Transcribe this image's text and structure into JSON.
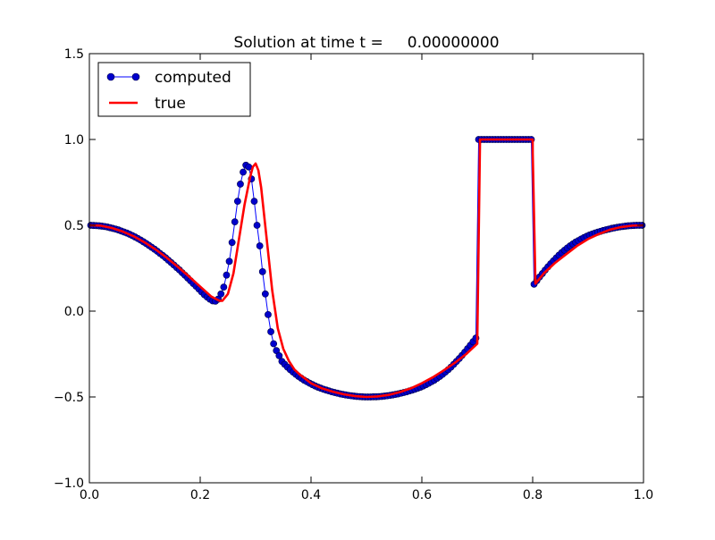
{
  "chart_data": {
    "type": "line",
    "title": "Solution at time t =     0.00000000",
    "xlabel": "",
    "ylabel": "",
    "xlim": [
      0.0,
      1.0
    ],
    "ylim": [
      -1.0,
      1.5
    ],
    "x_ticks": [
      0.0,
      0.2,
      0.4,
      0.6,
      0.8,
      1.0
    ],
    "x_tick_labels": [
      "0.0",
      "0.2",
      "0.4",
      "0.6",
      "0.8",
      "1.0"
    ],
    "y_ticks": [
      -1.0,
      -0.5,
      0.0,
      0.5,
      1.0,
      1.5
    ],
    "y_tick_labels": [
      "−1.0",
      "−0.5",
      "0.0",
      "0.5",
      "1.0",
      "1.5"
    ],
    "grid": false,
    "legend": {
      "placement": "top-left",
      "entries": [
        {
          "label": "computed",
          "style": "line-marker",
          "color": "#0000ff"
        },
        {
          "label": "true",
          "style": "line",
          "color": "#ff0000"
        }
      ]
    },
    "series": [
      {
        "name": "computed",
        "color": "#0000ff",
        "marker_fill": "#0000cc",
        "marker_stroke": "#000044",
        "style": "line-marker",
        "x": [
          0.0025,
          0.0075,
          0.0125,
          0.0175,
          0.0225,
          0.0275,
          0.0325,
          0.0375,
          0.0425,
          0.0475,
          0.0525,
          0.0575,
          0.0625,
          0.0675,
          0.0725,
          0.0775,
          0.0825,
          0.0875,
          0.0925,
          0.0975,
          0.1025,
          0.1075,
          0.1125,
          0.1175,
          0.1225,
          0.1275,
          0.1325,
          0.1375,
          0.1425,
          0.1475,
          0.1525,
          0.1575,
          0.1625,
          0.1675,
          0.1725,
          0.1775,
          0.1825,
          0.1875,
          0.1925,
          0.1975,
          0.2025,
          0.2075,
          0.2125,
          0.2175,
          0.2225,
          0.2275,
          0.2325,
          0.2375,
          0.2425,
          0.2475,
          0.2525,
          0.2575,
          0.2625,
          0.2675,
          0.2725,
          0.2775,
          0.2825,
          0.2875,
          0.2925,
          0.2975,
          0.3025,
          0.3075,
          0.3125,
          0.3175,
          0.3225,
          0.3275,
          0.3325,
          0.3375,
          0.3425,
          0.3475,
          0.3525,
          0.3575,
          0.3625,
          0.3675,
          0.3725,
          0.3775,
          0.3825,
          0.3875,
          0.3925,
          0.3975,
          0.4025,
          0.4075,
          0.4125,
          0.4175,
          0.4225,
          0.4275,
          0.4325,
          0.4375,
          0.4425,
          0.4475,
          0.4525,
          0.4575,
          0.4625,
          0.4675,
          0.4725,
          0.4775,
          0.4825,
          0.4875,
          0.4925,
          0.4975,
          0.5025,
          0.5075,
          0.5125,
          0.5175,
          0.5225,
          0.5275,
          0.5325,
          0.5375,
          0.5425,
          0.5475,
          0.5525,
          0.5575,
          0.5625,
          0.5675,
          0.5725,
          0.5775,
          0.5825,
          0.5875,
          0.5925,
          0.5975,
          0.6025,
          0.6075,
          0.6125,
          0.6175,
          0.6225,
          0.6275,
          0.6325,
          0.6375,
          0.6425,
          0.6475,
          0.6525,
          0.6575,
          0.6625,
          0.6675,
          0.6725,
          0.6775,
          0.6825,
          0.6875,
          0.6925,
          0.6975,
          0.7025,
          0.7075,
          0.7125,
          0.7175,
          0.7225,
          0.7275,
          0.7325,
          0.7375,
          0.7425,
          0.7475,
          0.7525,
          0.7575,
          0.7625,
          0.7675,
          0.7725,
          0.7775,
          0.7825,
          0.7875,
          0.7925,
          0.7975,
          0.8025,
          0.8075,
          0.8125,
          0.8175,
          0.8225,
          0.8275,
          0.8325,
          0.8375,
          0.8425,
          0.8475,
          0.8525,
          0.8575,
          0.8625,
          0.8675,
          0.8725,
          0.8775,
          0.8825,
          0.8875,
          0.8925,
          0.8975,
          0.9025,
          0.9075,
          0.9125,
          0.9175,
          0.9225,
          0.9275,
          0.9325,
          0.9375,
          0.9425,
          0.9475,
          0.9525,
          0.9575,
          0.9625,
          0.9675,
          0.9725,
          0.9775,
          0.9825,
          0.9875,
          0.9925,
          0.9975
        ],
        "y": [
          0.5,
          0.499,
          0.498,
          0.497,
          0.495,
          0.493,
          0.49,
          0.486,
          0.482,
          0.478,
          0.473,
          0.467,
          0.461,
          0.455,
          0.448,
          0.44,
          0.432,
          0.423,
          0.414,
          0.404,
          0.394,
          0.383,
          0.372,
          0.361,
          0.349,
          0.336,
          0.324,
          0.311,
          0.297,
          0.283,
          0.269,
          0.254,
          0.24,
          0.224,
          0.209,
          0.193,
          0.177,
          0.161,
          0.145,
          0.129,
          0.112,
          0.096,
          0.082,
          0.07,
          0.06,
          0.058,
          0.07,
          0.1,
          0.14,
          0.21,
          0.29,
          0.4,
          0.52,
          0.64,
          0.74,
          0.81,
          0.85,
          0.84,
          0.77,
          0.64,
          0.5,
          0.38,
          0.23,
          0.1,
          -0.02,
          -0.12,
          -0.19,
          -0.23,
          -0.26,
          -0.293,
          -0.31,
          -0.326,
          -0.341,
          -0.355,
          -0.368,
          -0.38,
          -0.391,
          -0.402,
          -0.411,
          -0.42,
          -0.428,
          -0.436,
          -0.443,
          -0.449,
          -0.455,
          -0.46,
          -0.465,
          -0.47,
          -0.474,
          -0.478,
          -0.482,
          -0.485,
          -0.488,
          -0.491,
          -0.493,
          -0.495,
          -0.497,
          -0.498,
          -0.499,
          -0.5,
          -0.5,
          -0.5,
          -0.499,
          -0.499,
          -0.498,
          -0.497,
          -0.495,
          -0.493,
          -0.491,
          -0.488,
          -0.485,
          -0.482,
          -0.478,
          -0.474,
          -0.47,
          -0.465,
          -0.46,
          -0.455,
          -0.449,
          -0.443,
          -0.436,
          -0.428,
          -0.42,
          -0.411,
          -0.402,
          -0.391,
          -0.38,
          -0.368,
          -0.355,
          -0.341,
          -0.326,
          -0.31,
          -0.293,
          -0.276,
          -0.258,
          -0.239,
          -0.219,
          -0.199,
          -0.178,
          -0.157,
          1.0,
          1.0,
          1.0,
          1.0,
          1.0,
          1.0,
          1.0,
          1.0,
          1.0,
          1.0,
          1.0,
          1.0,
          1.0,
          1.0,
          1.0,
          1.0,
          1.0,
          1.0,
          1.0,
          1.0,
          0.157,
          0.178,
          0.199,
          0.219,
          0.239,
          0.258,
          0.276,
          0.293,
          0.31,
          0.326,
          0.341,
          0.355,
          0.368,
          0.38,
          0.391,
          0.402,
          0.411,
          0.42,
          0.428,
          0.436,
          0.443,
          0.449,
          0.455,
          0.46,
          0.465,
          0.47,
          0.474,
          0.478,
          0.482,
          0.485,
          0.488,
          0.491,
          0.493,
          0.495,
          0.497,
          0.498,
          0.499,
          0.5,
          0.5,
          0.5
        ]
      },
      {
        "name": "true",
        "color": "#ff0000",
        "style": "line",
        "x": [
          0.0,
          0.02,
          0.04,
          0.06,
          0.08,
          0.1,
          0.12,
          0.14,
          0.16,
          0.18,
          0.2,
          0.22,
          0.235,
          0.24,
          0.25,
          0.26,
          0.27,
          0.28,
          0.29,
          0.295,
          0.3,
          0.305,
          0.31,
          0.32,
          0.33,
          0.34,
          0.35,
          0.36,
          0.37,
          0.38,
          0.4,
          0.42,
          0.44,
          0.46,
          0.48,
          0.5,
          0.52,
          0.54,
          0.56,
          0.58,
          0.6,
          0.62,
          0.64,
          0.66,
          0.68,
          0.7,
          0.7001,
          0.705,
          0.8,
          0.8001,
          0.805,
          0.82,
          0.84,
          0.86,
          0.88,
          0.9,
          0.92,
          0.94,
          0.96,
          0.98,
          1.0
        ],
        "y": [
          0.5,
          0.498,
          0.485,
          0.464,
          0.436,
          0.4,
          0.358,
          0.31,
          0.257,
          0.201,
          0.143,
          0.085,
          0.06,
          0.06,
          0.1,
          0.22,
          0.42,
          0.62,
          0.78,
          0.84,
          0.86,
          0.82,
          0.72,
          0.42,
          0.12,
          -0.1,
          -0.22,
          -0.29,
          -0.34,
          -0.37,
          -0.42,
          -0.45,
          -0.47,
          -0.485,
          -0.495,
          -0.5,
          -0.497,
          -0.488,
          -0.472,
          -0.45,
          -0.42,
          -0.385,
          -0.344,
          -0.3,
          -0.25,
          -0.19,
          -0.16,
          1.0,
          1.0,
          0.92,
          0.16,
          0.22,
          0.28,
          0.33,
          0.38,
          0.42,
          0.45,
          0.475,
          0.49,
          0.498,
          0.5
        ]
      }
    ]
  }
}
